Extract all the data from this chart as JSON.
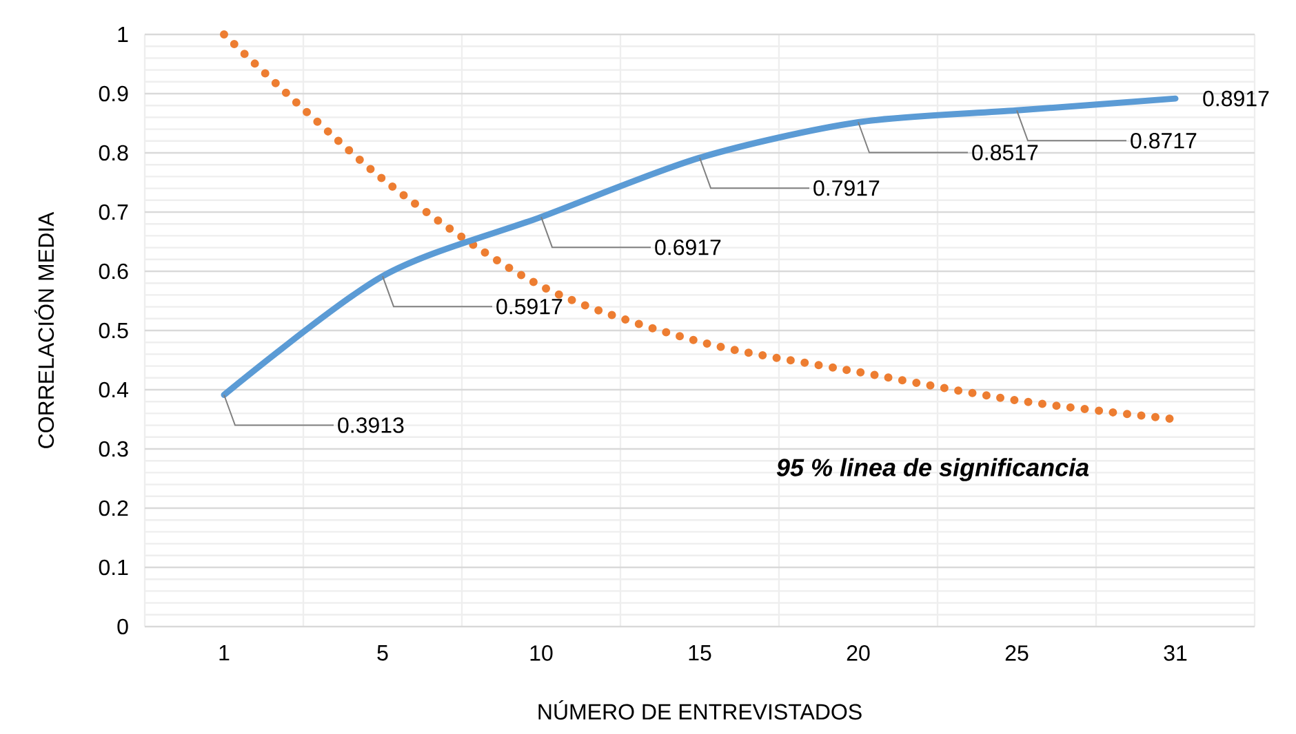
{
  "chart_data": {
    "type": "line",
    "xlabel": "NÚMERO DE ENTREVISTADOS",
    "ylabel": "CORRELACIÓN  MEDIA",
    "categories": [
      "1",
      "5",
      "10",
      "15",
      "20",
      "25",
      "31"
    ],
    "series": [
      {
        "color": "#ed7d31",
        "line_style": "dotted",
        "values": [
          1,
          0.756,
          0.575,
          0.481,
          0.43,
          0.382,
          0.35
        ]
      },
      {
        "color": "#5b9bd5",
        "line_style": "solid",
        "values": [
          0.3913,
          0.5917,
          0.6917,
          0.7917,
          0.8517,
          0.8717,
          0.8917
        ],
        "value_labels": [
          "0.3913",
          "0.5917",
          "0.6917",
          "0.7917",
          "0.8517",
          "0.8717",
          "0.8917"
        ]
      }
    ],
    "ylim": [
      0,
      1
    ],
    "yticks": [
      0,
      0.1,
      0.2,
      0.3,
      0.4,
      0.5,
      0.6,
      0.7,
      0.8,
      0.9,
      1
    ],
    "grid": true,
    "marker": "none",
    "annotations": [
      "95 % linea de significancia"
    ]
  }
}
